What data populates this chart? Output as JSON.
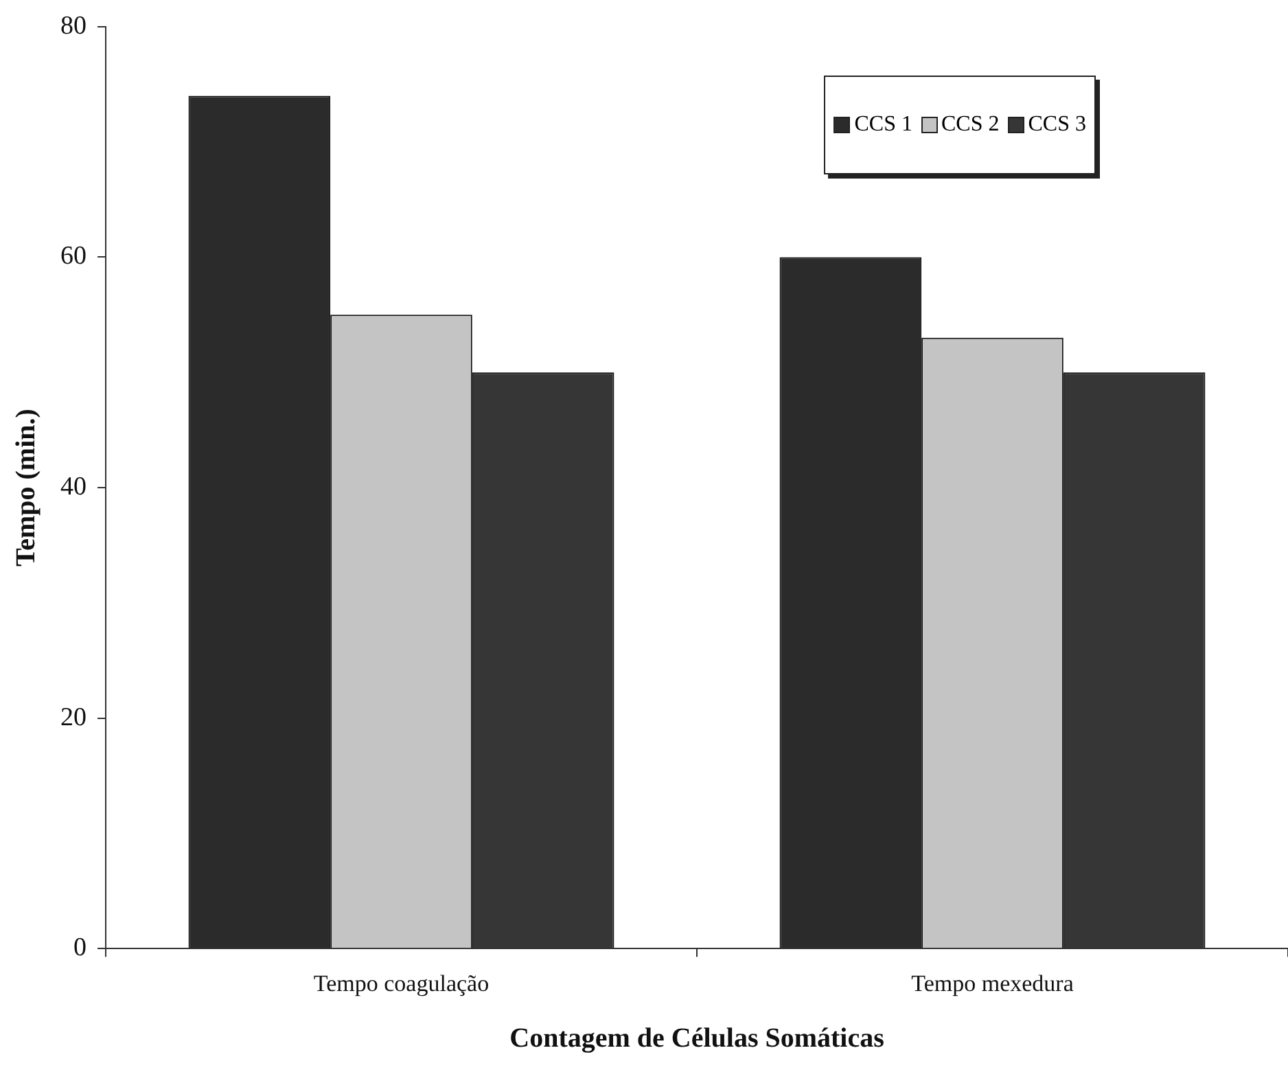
{
  "chart_data": {
    "type": "bar",
    "xlabel": "Contagem de Células Somáticas",
    "ylabel": "Tempo (min.)",
    "categories": [
      "Tempo coagulação",
      "Tempo mexedura"
    ],
    "series": [
      {
        "name": "CCS 1",
        "color": "#2b2b2b",
        "values": [
          74,
          60
        ]
      },
      {
        "name": "CCS 2",
        "color": "#c4c4c4",
        "values": [
          55,
          53
        ]
      },
      {
        "name": "CCS 3",
        "color": "#363636",
        "values": [
          50,
          50
        ]
      }
    ],
    "ylim": [
      0,
      80
    ],
    "yticks": [
      0,
      20,
      40,
      60,
      80
    ],
    "grid": false,
    "legend": "top right"
  }
}
